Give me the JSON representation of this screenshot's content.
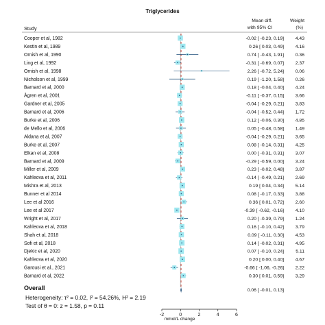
{
  "chart_data": {
    "type": "forest",
    "title": "Triglycerides",
    "header": {
      "study": "Study",
      "effect_line1": "Mean diff.",
      "effect_line2": "with 95% CI",
      "weight_line1": "Weight",
      "weight_line2": "(%)"
    },
    "studies": [
      {
        "name": "Cooper et al, 1982",
        "mean": -0.02,
        "lo": -0.23,
        "hi": 0.19,
        "weight": 4.43,
        "ci_text": "-0.02 [ -0.23,  0.19]"
      },
      {
        "name": "Kestin et al, 1989",
        "mean": 0.26,
        "lo": 0.03,
        "hi": 0.49,
        "weight": 4.16,
        "ci_text": "0.26 [  0.03,  0.49]"
      },
      {
        "name": "Ornish et al, 1990",
        "mean": 0.74,
        "lo": -0.43,
        "hi": 1.91,
        "weight": 0.36,
        "ci_text": "0.74 [ -0.43,  1.91]"
      },
      {
        "name": "Ling et al, 1992",
        "mean": -0.31,
        "lo": -0.69,
        "hi": 0.07,
        "weight": 2.37,
        "ci_text": "-0.31 [ -0.69,  0.07]"
      },
      {
        "name": "Ornish et al, 1998",
        "mean": 2.26,
        "lo": -0.72,
        "hi": 5.24,
        "weight": 0.06,
        "ci_text": "2.26 [ -0.72,  5.24]"
      },
      {
        "name": "Nicholson et al, 1999",
        "mean": 0.19,
        "lo": -1.2,
        "hi": 1.58,
        "weight": 0.26,
        "ci_text": "0.19 [ -1.20,  1.58]"
      },
      {
        "name": "Barnard et al, 2000",
        "mean": 0.18,
        "lo": -0.04,
        "hi": 0.4,
        "weight": 4.24,
        "ci_text": "0.18 [ -0.04,  0.40]"
      },
      {
        "name": "Ågren et al, 2001",
        "mean": -0.11,
        "lo": -0.37,
        "hi": 0.15,
        "weight": 3.66,
        "ci_text": "-0.11 [ -0.37,  0.15]"
      },
      {
        "name": "Gardner et al, 2005",
        "mean": -0.04,
        "lo": -0.29,
        "hi": 0.21,
        "weight": 3.83,
        "ci_text": "-0.04 [ -0.29,  0.21]"
      },
      {
        "name": "Barnard et al, 2006",
        "mean": -0.04,
        "lo": -0.52,
        "hi": 0.44,
        "weight": 1.72,
        "ci_text": "-0.04 [ -0.52,  0.44]"
      },
      {
        "name": "Burke et al, 2006",
        "mean": 0.12,
        "lo": -0.06,
        "hi": 0.3,
        "weight": 4.85,
        "ci_text": "0.12 [ -0.06,  0.30]"
      },
      {
        "name": "de Mello et al, 2006",
        "mean": 0.05,
        "lo": -0.48,
        "hi": 0.58,
        "weight": 1.49,
        "ci_text": "0.05 [ -0.48,  0.58]"
      },
      {
        "name": "Aldana et al, 2007",
        "mean": -0.04,
        "lo": -0.29,
        "hi": 0.21,
        "weight": 3.65,
        "ci_text": "-0.04 [ -0.29,  0.21]"
      },
      {
        "name": "Burke et al, 2007",
        "mean": 0.08,
        "lo": -0.14,
        "hi": 0.31,
        "weight": 4.25,
        "ci_text": "0.08 [ -0.14,  0.31]"
      },
      {
        "name": "Elkan et al, 2008",
        "mean": 0.0,
        "lo": -0.31,
        "hi": 0.31,
        "weight": 3.07,
        "ci_text": "0.00 [ -0.31,  0.31]"
      },
      {
        "name": "Barnard et al, 2009",
        "mean": -0.29,
        "lo": -0.59,
        "hi": 0.0,
        "weight": 3.24,
        "ci_text": "-0.29 [ -0.59,  0.00]"
      },
      {
        "name": "Miller et al, 2009",
        "mean": 0.23,
        "lo": -0.02,
        "hi": 0.48,
        "weight": 3.87,
        "ci_text": "0.23 [ -0.02,  0.48]"
      },
      {
        "name": "Kahleova et al, 2011",
        "mean": -0.14,
        "lo": -0.49,
        "hi": 0.21,
        "weight": 2.69,
        "ci_text": "-0.14 [ -0.49,  0.21]"
      },
      {
        "name": "Mishra et al, 2013",
        "mean": 0.19,
        "lo": 0.04,
        "hi": 0.34,
        "weight": 5.14,
        "ci_text": "0.19 [  0.04,  0.34]"
      },
      {
        "name": "Bunner et al 2014",
        "mean": 0.08,
        "lo": -0.17,
        "hi": 0.33,
        "weight": 3.88,
        "ci_text": "0.08 [ -0.17,  0.33]"
      },
      {
        "name": "Lee et al 2016",
        "mean": 0.36,
        "lo": 0.01,
        "hi": 0.72,
        "weight": 2.6,
        "ci_text": "0.36 [  0.01,  0.72]"
      },
      {
        "name": "Lee et al 2017",
        "mean": -0.39,
        "lo": -0.62,
        "hi": -0.16,
        "weight": 4.1,
        "ci_text": "-0.39 [ -0.62, -0.16]"
      },
      {
        "name": "Wright et al, 2017",
        "mean": 0.2,
        "lo": -0.39,
        "hi": 0.79,
        "weight": 1.24,
        "ci_text": "0.20 [ -0.39,  0.79]"
      },
      {
        "name": "Kahleova et al, 2018",
        "mean": 0.16,
        "lo": -0.1,
        "hi": 0.42,
        "weight": 3.79,
        "ci_text": "0.16 [ -0.10,  0.42]"
      },
      {
        "name": "Shah et al, 2018",
        "mean": 0.09,
        "lo": -0.11,
        "hi": 0.3,
        "weight": 4.53,
        "ci_text": "0.09 [ -0.11,  0.30]"
      },
      {
        "name": "Sofi et al, 2018",
        "mean": 0.14,
        "lo": -0.02,
        "hi": 0.31,
        "weight": 4.95,
        "ci_text": "0.14 [ -0.02,  0.31]"
      },
      {
        "name": "Djekic et al, 2020",
        "mean": 0.07,
        "lo": -0.1,
        "hi": 0.24,
        "weight": 5.11,
        "ci_text": "0.07 [ -0.10,  0.24]"
      },
      {
        "name": "Kahleova et al, 2020",
        "mean": 0.2,
        "lo": 0.0,
        "hi": 0.4,
        "weight": 4.67,
        "ci_text": "0.20 [  0.00,  0.40]"
      },
      {
        "name": "Garousi et al., 2021",
        "mean": -0.66,
        "lo": -1.06,
        "hi": -0.26,
        "weight": 2.22,
        "ci_text": "-0.66 [ -1.06, -0.26]"
      },
      {
        "name": "Barnard et al, 2022",
        "mean": 0.3,
        "lo": 0.01,
        "hi": 0.59,
        "weight": 3.29,
        "ci_text": "0.30 [  0.01,  0.59]"
      }
    ],
    "overall": {
      "label": "Overall",
      "mean": 0.06,
      "lo": -0.01,
      "hi": 0.13,
      "ci_text": "0.06 [ -0.01,  0.13]"
    },
    "heterogeneity_text": "Heterogeneity: τ² = 0.02, I² = 54.26%, H² = 2.19",
    "test_text": "Test of θ = 0: z = 1.58, p = 0.11",
    "xticks": [
      -2,
      0,
      2,
      4,
      6
    ],
    "xlim": [
      -2,
      6
    ],
    "xlabel": "mmol/L change",
    "box_color": "#9fe7ef",
    "overall_color": "#1f4f7a",
    "line_color": "#1f4f7a",
    "null_line_color": "#aaaaaa"
  }
}
